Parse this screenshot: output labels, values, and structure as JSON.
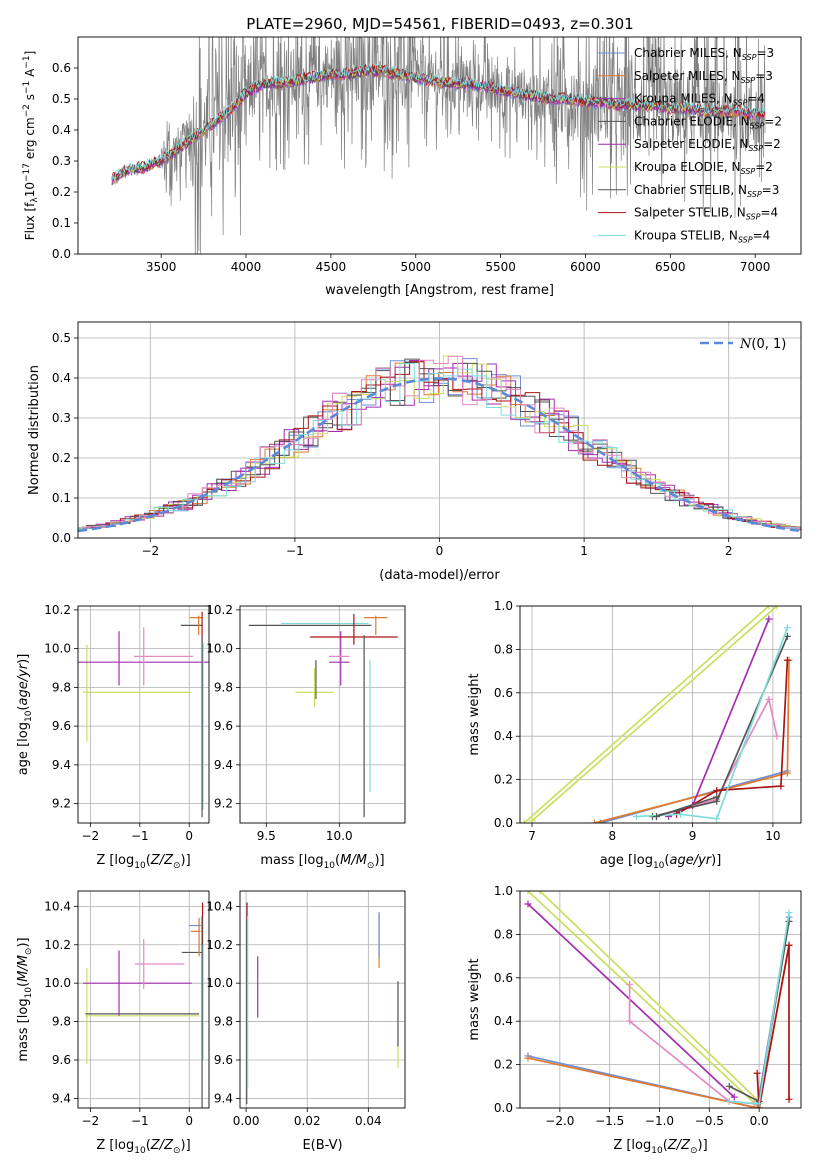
{
  "figure": {
    "title": "PLATE=2960, MJD=54561, FIBERID=0493, z=0.301"
  },
  "colors": {
    "Chabrier MILES": "#6f8fd8",
    "Salpeter MILES": "#e07a30",
    "Kroupa MILES": "#a52db0",
    "Chabrier ELODIE": "#555555",
    "Salpeter ELODIE": "#a52db0",
    "Kroupa ELODIE": "#c8e060",
    "Chabrier STELIB": "#555555",
    "Salpeter STELIB": "#aa1515",
    "Kroupa STELIB": "#7fdcdc",
    "data": "#808080",
    "pink": "#e58ac0",
    "gaussian": "#5b8ad8"
  },
  "chart_data": [
    {
      "id": "spectrum",
      "type": "line",
      "title": "PLATE=2960, MJD=54561, FIBERID=0493, z=0.301",
      "xlabel": "wavelength [Angstrom, rest frame]",
      "ylabel": "Flux [f$_\\lambda$10$^{-17}$ erg cm$^{-2}$ s$^{-1}$ A$^{-1}$]",
      "ylabel_text": "Flux [f",
      "xlim": [
        3010,
        7270
      ],
      "ylim": [
        0,
        0.7
      ],
      "xticks": [
        3500,
        4000,
        4500,
        5000,
        5500,
        6000,
        6500,
        7000
      ],
      "yticks": [
        0,
        0.1,
        0.2,
        0.3,
        0.4,
        0.5,
        0.6
      ],
      "legend_position": "top-right",
      "legend": [
        {
          "label": "Chabrier MILES, N",
          "sub": "SSP",
          "val": "=3"
        },
        {
          "label": "Salpeter MILES, N",
          "sub": "SSP",
          "val": "=3"
        },
        {
          "label": "Kroupa MILES, N",
          "sub": "SSP",
          "val": "=4"
        },
        {
          "label": "Chabrier ELODIE, N",
          "sub": "SSP",
          "val": "=2"
        },
        {
          "label": "Salpeter ELODIE, N",
          "sub": "SSP",
          "val": "=2"
        },
        {
          "label": "Kroupa ELODIE, N",
          "sub": "SSP",
          "val": "=2"
        },
        {
          "label": "Chabrier STELIB, N",
          "sub": "SSP",
          "val": "=3"
        },
        {
          "label": "Salpeter STELIB, N",
          "sub": "SSP",
          "val": "=4"
        },
        {
          "label": "Kroupa STELIB, N",
          "sub": "SSP",
          "val": "=4"
        }
      ],
      "model_continuum": [
        [
          3210,
          0.24
        ],
        [
          3300,
          0.27
        ],
        [
          3400,
          0.28
        ],
        [
          3500,
          0.3
        ],
        [
          3600,
          0.34
        ],
        [
          3700,
          0.38
        ],
        [
          3800,
          0.42
        ],
        [
          3900,
          0.46
        ],
        [
          4000,
          0.52
        ],
        [
          4100,
          0.55
        ],
        [
          4200,
          0.55
        ],
        [
          4300,
          0.56
        ],
        [
          4400,
          0.57
        ],
        [
          4500,
          0.58
        ],
        [
          4600,
          0.58
        ],
        [
          4700,
          0.59
        ],
        [
          4800,
          0.59
        ],
        [
          4900,
          0.58
        ],
        [
          5000,
          0.57
        ],
        [
          5100,
          0.56
        ],
        [
          5200,
          0.55
        ],
        [
          5300,
          0.55
        ],
        [
          5400,
          0.54
        ],
        [
          5500,
          0.53
        ],
        [
          5600,
          0.52
        ],
        [
          5700,
          0.51
        ],
        [
          5800,
          0.5
        ],
        [
          5900,
          0.5
        ],
        [
          6000,
          0.49
        ],
        [
          6100,
          0.49
        ],
        [
          6200,
          0.48
        ],
        [
          6300,
          0.48
        ],
        [
          6400,
          0.48
        ],
        [
          6500,
          0.47
        ],
        [
          6600,
          0.47
        ],
        [
          6700,
          0.46
        ],
        [
          6800,
          0.46
        ],
        [
          6900,
          0.46
        ],
        [
          7000,
          0.45
        ],
        [
          7060,
          0.45
        ]
      ]
    },
    {
      "id": "residuals",
      "type": "line",
      "xlabel": "(data-model)/error",
      "ylabel": "Normed distribution",
      "xlim": [
        -2.5,
        2.5
      ],
      "ylim": [
        0,
        0.54
      ],
      "xticks": [
        -2,
        -1,
        0,
        1,
        2
      ],
      "yticks": [
        0,
        0.1,
        0.2,
        0.3,
        0.4,
        0.5
      ],
      "grid": true,
      "legend_position": "top-right",
      "legend": [
        {
          "label": "(0, 1)",
          "symbol": "N"
        }
      ]
    },
    {
      "id": "age_vs_Z",
      "type": "scatter",
      "xlabel": "Z [log",
      "ylabel": "age  [log",
      "xlim": [
        -2.25,
        0.4
      ],
      "ylim": [
        9.1,
        10.22
      ],
      "xticks": [
        -2,
        -1,
        0
      ],
      "yticks": [
        9.2,
        9.4,
        9.6,
        9.8,
        10.0,
        10.2
      ],
      "grid": true,
      "errorbars": [
        {
          "c": "Kroupa ELODIE",
          "x": -2.07,
          "y": 9.77,
          "xe": 0.0,
          "ye": 0.25
        },
        {
          "c": "Kroupa ELODIE",
          "x": -1.05,
          "y": 9.775,
          "xe": 1.1,
          "ye": 0.0
        },
        {
          "c": "Kroupa MILES",
          "x": -0.75,
          "y": 9.93,
          "xe": 1.55,
          "ye": 0.0
        },
        {
          "c": "Kroupa MILES",
          "x": -1.42,
          "y": 9.95,
          "xe": 0.0,
          "ye": 0.14
        },
        {
          "c": "pink",
          "x": -0.52,
          "y": 9.96,
          "xe": 0.6,
          "ye": 0.0
        },
        {
          "c": "pink",
          "x": -0.92,
          "y": 9.96,
          "xe": 0.0,
          "ye": 0.15
        },
        {
          "c": "Chabrier ELODIE",
          "x": 0.05,
          "y": 10.12,
          "xe": 0.22,
          "ye": 0.0
        },
        {
          "c": "Salpeter MILES",
          "x": 0.13,
          "y": 10.16,
          "xe": 0.12,
          "ye": 0.0
        },
        {
          "c": "Salpeter MILES",
          "x": 0.19,
          "y": 10.12,
          "xe": 0.0,
          "ye": 0.05
        },
        {
          "c": "Salpeter STELIB",
          "x": 0.26,
          "y": 10.11,
          "xe": 0.0,
          "ye": 0.08
        },
        {
          "c": "Kroupa STELIB",
          "x": 0.28,
          "y": 9.6,
          "xe": 0.0,
          "ye": 0.43
        },
        {
          "c": "Chabrier STELIB",
          "x": 0.26,
          "y": 9.6,
          "xe": 0.0,
          "ye": 0.47
        }
      ]
    },
    {
      "id": "age_vs_mass",
      "type": "scatter",
      "xlabel": "mass [log",
      "xlim": [
        9.32,
        10.45
      ],
      "ylim": [
        9.1,
        10.22
      ],
      "xticks": [
        9.5,
        10.0
      ],
      "yticks": [
        9.2,
        9.4,
        9.6,
        9.8,
        10.0,
        10.2
      ],
      "grid": true,
      "errorbars": [
        {
          "c": "Kroupa ELODIE",
          "x": 9.83,
          "y": 9.775,
          "xe": 0.13,
          "ye": 0.0
        },
        {
          "c": "Kroupa ELODIE",
          "x": 9.83,
          "y": 9.8,
          "xe": 0.0,
          "ye": 0.1
        },
        {
          "c": "Chabrier ELODIE",
          "x": 9.84,
          "y": 9.84,
          "xe": 0.0,
          "ye": 0.1
        },
        {
          "c": "Kroupa MILES",
          "x": 10.0,
          "y": 9.93,
          "xe": 0.07,
          "ye": 0.0
        },
        {
          "c": "Kroupa MILES",
          "x": 10.01,
          "y": 9.95,
          "xe": 0.0,
          "ye": 0.14
        },
        {
          "c": "pink",
          "x": 10.0,
          "y": 9.96,
          "xe": 0.07,
          "ye": 0.0
        },
        {
          "c": "Chabrier ELODIE",
          "x": 9.8,
          "y": 10.12,
          "xe": 0.42,
          "ye": 0.0
        },
        {
          "c": "Kroupa STELIB",
          "x": 9.9,
          "y": 10.13,
          "xe": 0.3,
          "ye": 0.0
        },
        {
          "c": "Salpeter STELIB",
          "x": 10.1,
          "y": 10.06,
          "xe": 0.3,
          "ye": 0.0
        },
        {
          "c": "Salpeter STELIB",
          "x": 10.1,
          "y": 10.1,
          "xe": 0.0,
          "ye": 0.08
        },
        {
          "c": "Salpeter MILES",
          "x": 10.25,
          "y": 10.16,
          "xe": 0.08,
          "ye": 0.0
        },
        {
          "c": "Salpeter MILES",
          "x": 10.25,
          "y": 10.12,
          "xe": 0.0,
          "ye": 0.05
        },
        {
          "c": "Chabrier STELIB",
          "x": 10.17,
          "y": 9.6,
          "xe": 0.0,
          "ye": 0.47
        },
        {
          "c": "Kroupa STELIB",
          "x": 10.21,
          "y": 9.6,
          "xe": 0.0,
          "ye": 0.34
        }
      ]
    },
    {
      "id": "weight_vs_age",
      "type": "line",
      "xlabel": "age  [log",
      "ylabel": "mass weight",
      "xlim": [
        6.85,
        10.35
      ],
      "ylim": [
        0,
        1
      ],
      "xticks": [
        7,
        8,
        9,
        10
      ],
      "yticks": [
        0.0,
        0.2,
        0.4,
        0.6,
        0.8,
        1.0
      ],
      "grid": true,
      "series": [
        {
          "c": "Kroupa ELODIE",
          "pts": [
            [
              6.9,
              0.0
            ],
            [
              9.95,
              1.0
            ]
          ]
        },
        {
          "c": "Kroupa ELODIE",
          "pts": [
            [
              7.0,
              0.01
            ],
            [
              10.05,
              1.0
            ]
          ]
        },
        {
          "c": "Chabrier MILES",
          "pts": [
            [
              7.85,
              0.0
            ],
            [
              10.18,
              0.24
            ]
          ]
        },
        {
          "c": "Salpeter MILES",
          "pts": [
            [
              7.78,
              0.0
            ],
            [
              10.18,
              0.23
            ],
            [
              10.2,
              0.75
            ]
          ]
        },
        {
          "c": "Kroupa MILES",
          "pts": [
            [
              8.7,
              0.03
            ],
            [
              9.0,
              0.08
            ],
            [
              9.95,
              0.94
            ]
          ]
        },
        {
          "c": "pink",
          "pts": [
            [
              8.55,
              0.03
            ],
            [
              9.3,
              0.11
            ],
            [
              9.95,
              0.57
            ],
            [
              10.05,
              0.4
            ]
          ]
        },
        {
          "c": "Chabrier STELIB",
          "pts": [
            [
              8.5,
              0.03
            ],
            [
              9.3,
              0.1
            ],
            [
              10.18,
              0.86
            ]
          ]
        },
        {
          "c": "Salpeter STELIB",
          "pts": [
            [
              8.8,
              0.04
            ],
            [
              9.3,
              0.15
            ],
            [
              10.1,
              0.17
            ],
            [
              10.18,
              0.75
            ]
          ]
        },
        {
          "c": "Kroupa STELIB",
          "pts": [
            [
              8.3,
              0.03
            ],
            [
              8.85,
              0.04
            ],
            [
              9.3,
              0.02
            ],
            [
              10.18,
              0.9
            ]
          ]
        },
        {
          "c": "Chabrier ELODIE",
          "pts": [
            [
              8.55,
              0.03
            ],
            [
              9.3,
              0.12
            ]
          ]
        }
      ]
    },
    {
      "id": "mass_vs_Z",
      "type": "scatter",
      "xlabel": "Z [log",
      "ylabel": "mass [log",
      "xlim": [
        -2.25,
        0.4
      ],
      "ylim": [
        9.35,
        10.48
      ],
      "xticks": [
        -2,
        -1,
        0
      ],
      "yticks": [
        9.4,
        9.6,
        9.8,
        10.0,
        10.2,
        10.4
      ],
      "grid": true,
      "errorbars": [
        {
          "c": "Kroupa ELODIE",
          "x": -2.07,
          "y": 9.83,
          "xe": 0.0,
          "ye": 0.25
        },
        {
          "c": "Kroupa ELODIE",
          "x": -0.95,
          "y": 9.83,
          "xe": 1.15,
          "ye": 0.0
        },
        {
          "c": "Chabrier ELODIE",
          "x": -0.95,
          "y": 9.84,
          "xe": 1.15,
          "ye": 0.0
        },
        {
          "c": "Kroupa MILES",
          "x": -1.42,
          "y": 10.0,
          "xe": 0.0,
          "ye": 0.17
        },
        {
          "c": "Kroupa MILES",
          "x": -1.05,
          "y": 10.0,
          "xe": 1.1,
          "ye": 0.0
        },
        {
          "c": "pink",
          "x": -0.92,
          "y": 10.1,
          "xe": 0.0,
          "ye": 0.13
        },
        {
          "c": "pink",
          "x": -0.6,
          "y": 10.1,
          "xe": 0.5,
          "ye": 0.0
        },
        {
          "c": "Chabrier ELODIE",
          "x": 0.05,
          "y": 10.16,
          "xe": 0.2,
          "ye": 0.0
        },
        {
          "c": "Chabrier MILES",
          "x": 0.12,
          "y": 10.3,
          "xe": 0.12,
          "ye": 0.0
        },
        {
          "c": "Salpeter MILES",
          "x": 0.13,
          "y": 10.27,
          "xe": 0.1,
          "ye": 0.0
        },
        {
          "c": "Salpeter MILES",
          "x": 0.2,
          "y": 10.24,
          "xe": 0.0,
          "ye": 0.1
        },
        {
          "c": "Salpeter STELIB",
          "x": 0.27,
          "y": 10.07,
          "xe": 0.0,
          "ye": 0.35
        },
        {
          "c": "Kroupa STELIB",
          "x": 0.28,
          "y": 9.9,
          "xe": 0.0,
          "ye": 0.3
        },
        {
          "c": "Chabrier STELIB",
          "x": 0.26,
          "y": 9.85,
          "xe": 0.0,
          "ye": 0.5
        }
      ]
    },
    {
      "id": "mass_vs_ebv",
      "type": "scatter",
      "xlabel": "E(B-V)",
      "xlim": [
        -0.002,
        0.052
      ],
      "ylim": [
        9.35,
        10.48
      ],
      "xticks": [
        0.0,
        0.02,
        0.04
      ],
      "yticks": [
        9.4,
        9.6,
        9.8,
        10.0,
        10.2,
        10.4
      ],
      "grid": true,
      "errorbars": [
        {
          "c": "Salpeter STELIB",
          "x": 0.0003,
          "y": 10.07,
          "xe": 0.0,
          "ye": 0.35
        },
        {
          "c": "Chabrier STELIB",
          "x": 0.0002,
          "y": 9.85,
          "xe": 0.0,
          "ye": 0.48
        },
        {
          "c": "Kroupa STELIB",
          "x": 0.0005,
          "y": 9.9,
          "xe": 0.0,
          "ye": 0.45
        },
        {
          "c": "Kroupa MILES",
          "x": 0.0038,
          "y": 9.98,
          "xe": 0.0,
          "ye": 0.16
        },
        {
          "c": "Salpeter MILES",
          "x": 0.0435,
          "y": 10.22,
          "xe": 0.0,
          "ye": 0.14
        },
        {
          "c": "Chabrier MILES",
          "x": 0.0435,
          "y": 10.25,
          "xe": 0.0,
          "ye": 0.12
        },
        {
          "c": "Kroupa ELODIE",
          "x": 0.0497,
          "y": 9.78,
          "xe": 0.0,
          "ye": 0.22
        },
        {
          "c": "Chabrier ELODIE",
          "x": 0.0497,
          "y": 9.84,
          "xe": 0.0,
          "ye": 0.17
        }
      ]
    },
    {
      "id": "weight_vs_Z",
      "type": "line",
      "xlabel": "Z [log",
      "ylabel": "mass weight",
      "xlim": [
        -2.4,
        0.42
      ],
      "ylim": [
        0,
        1
      ],
      "xticks": [
        -2.0,
        -1.5,
        -1.0,
        -0.5,
        0.0
      ],
      "yticks": [
        0.0,
        0.2,
        0.4,
        0.6,
        0.8,
        1.0
      ],
      "grid": true,
      "series": [
        {
          "c": "Kroupa ELODIE",
          "pts": [
            [
              -2.32,
              1.0
            ],
            [
              -0.02,
              0.01
            ]
          ]
        },
        {
          "c": "Kroupa ELODIE",
          "pts": [
            [
              -2.2,
              1.0
            ],
            [
              0.0,
              0.03
            ]
          ]
        },
        {
          "c": "Kroupa MILES",
          "pts": [
            [
              -2.32,
              0.94
            ],
            [
              -0.25,
              0.05
            ]
          ]
        },
        {
          "c": "pink",
          "pts": [
            [
              -1.3,
              0.57
            ],
            [
              -1.3,
              0.4
            ],
            [
              -0.3,
              0.03
            ],
            [
              -0.05,
              0.02
            ]
          ]
        },
        {
          "c": "Chabrier MILES",
          "pts": [
            [
              -2.32,
              0.24
            ],
            [
              -0.02,
              0.0
            ],
            [
              0.3,
              0.88
            ]
          ]
        },
        {
          "c": "Salpeter MILES",
          "pts": [
            [
              -2.32,
              0.23
            ],
            [
              -0.02,
              0.0
            ],
            [
              0.0,
              0.0
            ],
            [
              0.3,
              0.75
            ]
          ]
        },
        {
          "c": "Chabrier STELIB",
          "pts": [
            [
              -0.3,
              0.1
            ],
            [
              0.0,
              0.03
            ],
            [
              0.3,
              0.86
            ]
          ]
        },
        {
          "c": "Salpeter STELIB",
          "pts": [
            [
              -0.02,
              0.16
            ],
            [
              0.0,
              0.0
            ],
            [
              0.3,
              0.75
            ],
            [
              0.3,
              0.04
            ]
          ]
        },
        {
          "c": "Kroupa STELIB",
          "pts": [
            [
              -0.3,
              0.03
            ],
            [
              0.0,
              0.02
            ],
            [
              0.3,
              0.9
            ]
          ]
        }
      ]
    }
  ]
}
